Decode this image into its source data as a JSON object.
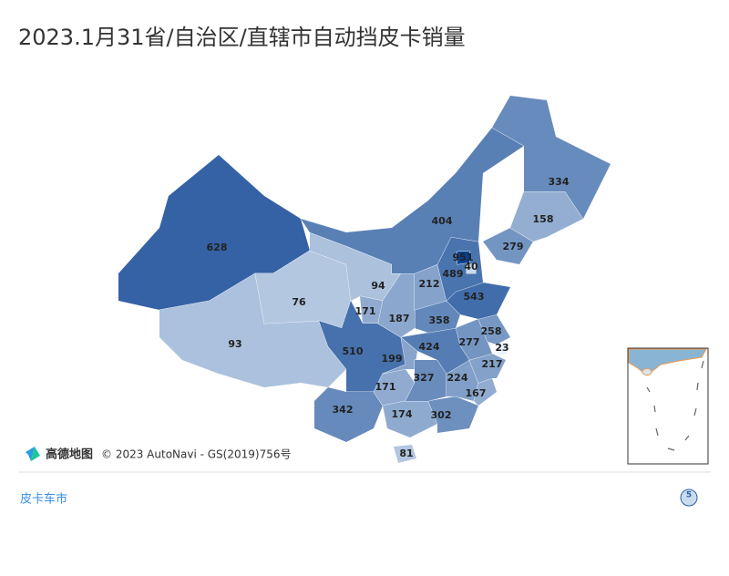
{
  "chart_data": {
    "type": "choropleth",
    "title": "2023.1月31省/自治区/直辖市自动挡皮卡销量",
    "values": [
      628,
      93,
      76,
      94,
      171,
      510,
      342,
      171,
      199,
      174,
      302,
      81,
      327,
      224,
      167,
      217,
      23,
      277,
      258,
      424,
      358,
      187,
      212,
      543,
      489,
      951,
      40,
      404,
      279,
      158,
      334
    ],
    "color_range": [
      "#eaf2fa",
      "#08408f"
    ]
  },
  "attribution": {
    "brand": "高德地图",
    "copyright": "© 2023 AutoNavi - GS(2019)756号"
  },
  "footer": {
    "source": "皮卡车市",
    "badge": "5"
  }
}
